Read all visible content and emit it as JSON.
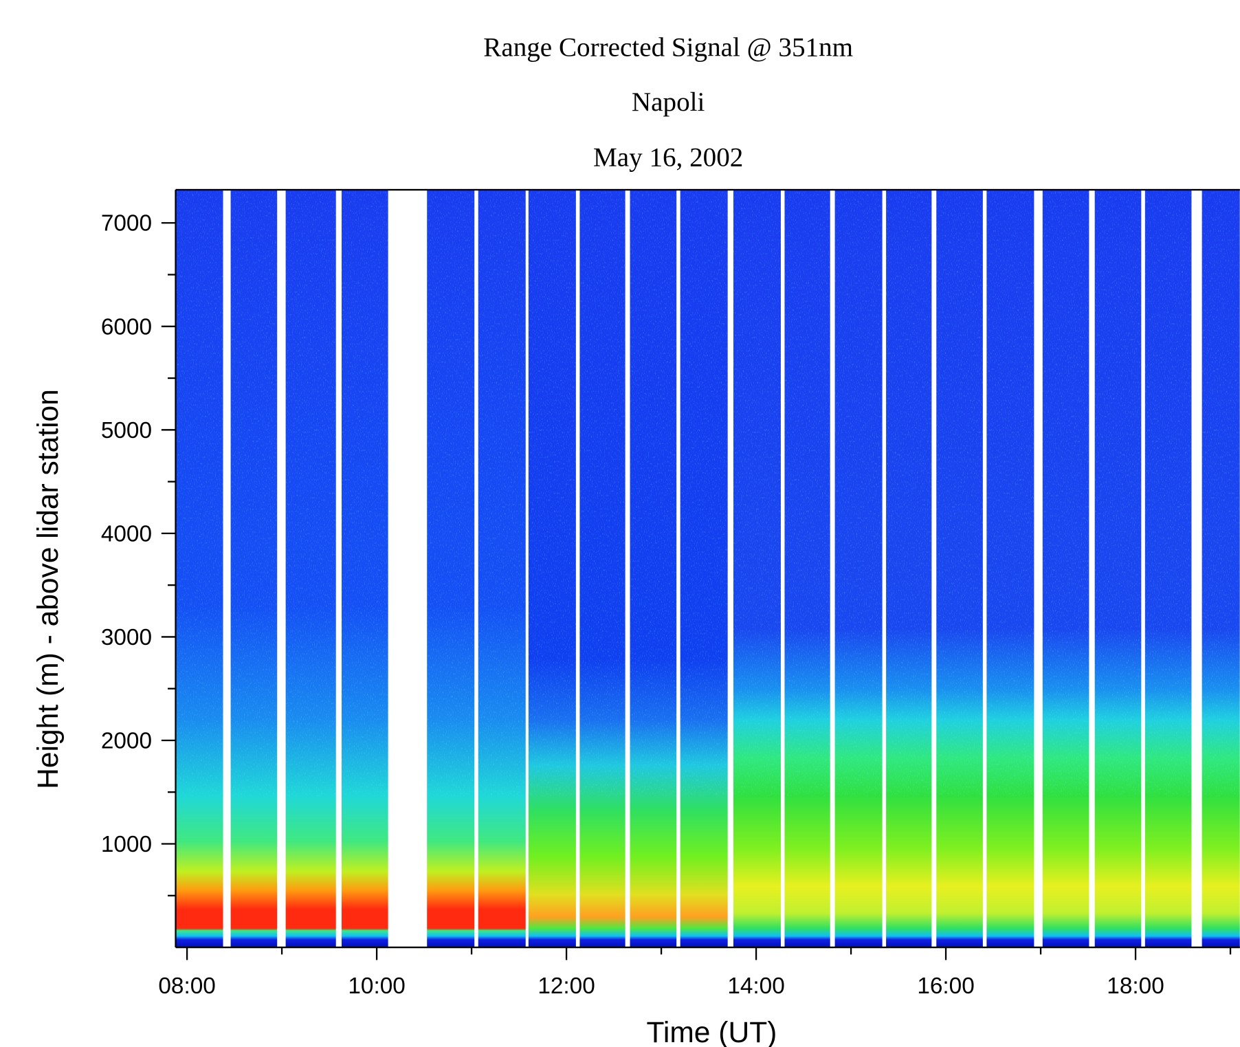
{
  "chart_data": {
    "type": "time-height",
    "title": "Range Corrected Signal @ 351nm",
    "subtitle": "Napoli",
    "date": "May 16, 2002",
    "x_label": "Time (UT)",
    "y_label": "Height (m) - above lidar station",
    "xlim": [
      7.88,
      19.1
    ],
    "ylim": [
      0,
      7320
    ],
    "xticks": [
      {
        "value": 8,
        "label": "08:00"
      },
      {
        "value": 10,
        "label": "10:00"
      },
      {
        "value": 12,
        "label": "12:00"
      },
      {
        "value": 14,
        "label": "14:00"
      },
      {
        "value": 16,
        "label": "16:00"
      },
      {
        "value": 18,
        "label": "18:00"
      }
    ],
    "xminorticks": [
      9,
      11,
      13,
      15,
      17,
      19
    ],
    "yticks": [
      1000,
      2000,
      3000,
      4000,
      5000,
      6000,
      7000
    ],
    "yminorticks": [
      500,
      1500,
      2500,
      3500,
      4500,
      5500,
      6500
    ],
    "x_start": [
      7.88,
      8.46,
      9.04,
      9.63,
      10.53,
      11.07,
      11.6,
      12.14,
      12.67,
      13.2,
      13.76,
      14.3,
      14.83,
      15.37,
      15.9,
      16.43,
      17.02,
      17.57,
      18.1,
      18.7
    ],
    "x_end": [
      8.38,
      8.95,
      9.57,
      10.12,
      11.03,
      11.57,
      12.1,
      12.62,
      13.16,
      13.7,
      14.26,
      14.78,
      15.33,
      15.85,
      16.39,
      16.93,
      17.51,
      18.06,
      18.59,
      19.1
    ]
  }
}
